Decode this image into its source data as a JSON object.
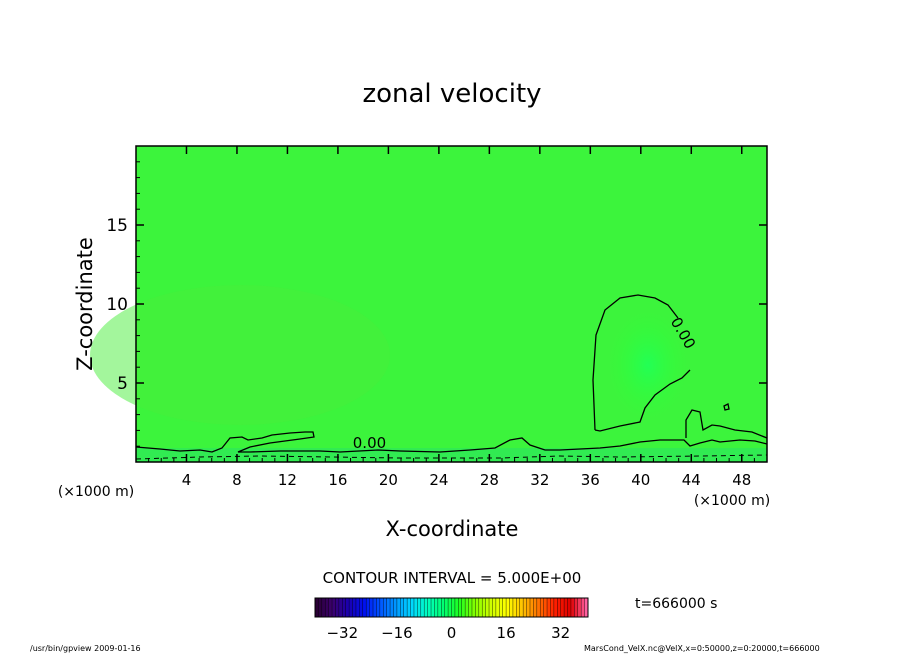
{
  "chart_data": {
    "type": "heatmap",
    "title": "zonal velocity",
    "xlabel": "X-coordinate",
    "ylabel": "Z-coordinate",
    "x_unit": "(×1000 m)",
    "x_ticks": [
      4,
      8,
      12,
      16,
      20,
      24,
      28,
      32,
      36,
      40,
      44,
      48
    ],
    "y_ticks": [
      5,
      10,
      15
    ],
    "xlim": [
      0,
      50
    ],
    "ylim": [
      0,
      20
    ],
    "contour_labels": [
      {
        "text": "0.00",
        "x": 18.5,
        "z": 0.9
      },
      {
        "text": "0.00",
        "x": 43,
        "z": 8.0
      }
    ],
    "contour_interval": "CONTOUR INTERVAL = 5.000E+00",
    "colorbar": {
      "ticks": [
        -32,
        -16,
        0,
        16,
        32
      ],
      "range": [
        -40,
        40
      ],
      "colors": [
        "#2a0035",
        "#3b006e",
        "#1a00b0",
        "#0010f0",
        "#0055ff",
        "#0098ff",
        "#00d8ff",
        "#00ffc0",
        "#00ff70",
        "#20ff20",
        "#88ff00",
        "#d0ff00",
        "#ffff00",
        "#ffc000",
        "#ff7000",
        "#ff2000",
        "#e00000",
        "#ff60a0"
      ]
    },
    "time_label": "t=666000 s"
  },
  "footer": {
    "left": "/usr/bin/gpview   2009-01-16",
    "right": "MarsCond_VelX.nc@VelX,x=0:50000,z=0:20000,t=666000"
  }
}
